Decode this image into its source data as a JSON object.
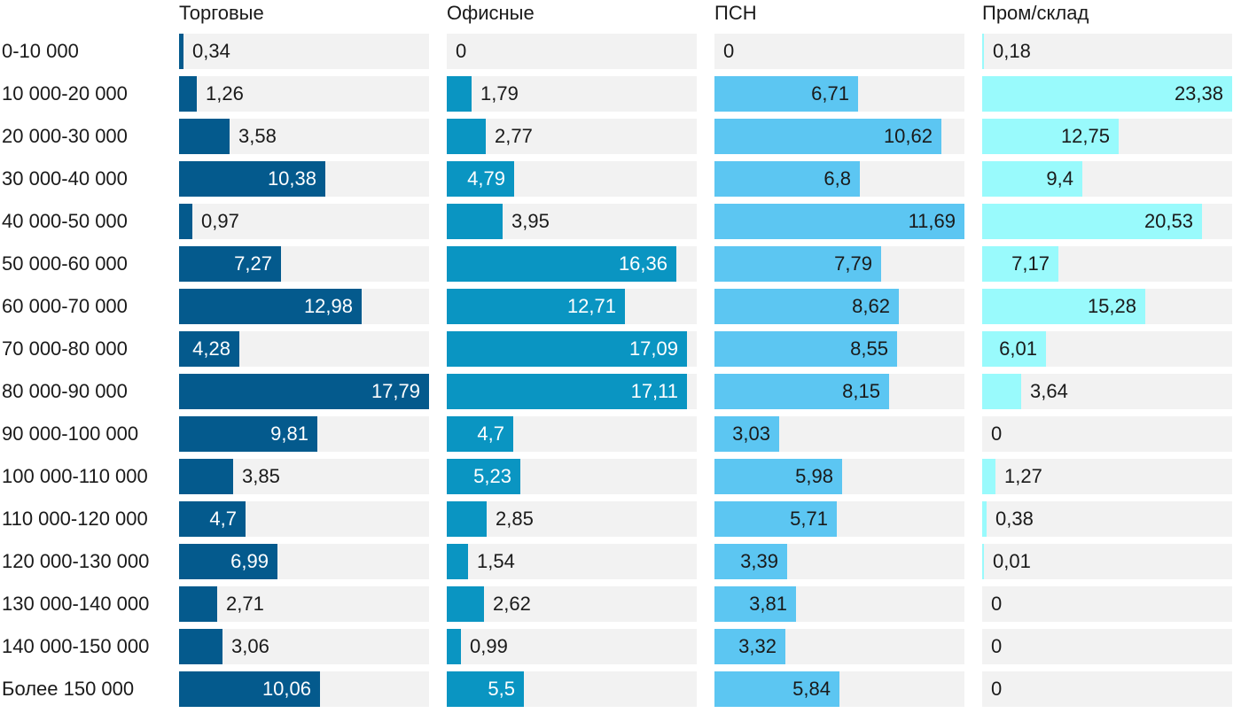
{
  "chart_data": {
    "type": "bar",
    "orientation": "horizontal",
    "layout": "small-multiples",
    "categories": [
      "0-10 000",
      "10 000-20 000",
      "20 000-30 000",
      "30 000-40 000",
      "40 000-50 000",
      "50 000-60 000",
      "60 000-70 000",
      "70 000-80 000",
      "80 000-90 000",
      "90 000-100 000",
      "100 000-110 000",
      "110 000-120 000",
      "120 000-130 000",
      "130 000-140 000",
      "140 000-150 000",
      "Более 150 000"
    ],
    "series": [
      {
        "name": "Торговые",
        "color": "#045a8d",
        "label_color": "#ffffff",
        "xlim": [
          0,
          17.79
        ],
        "values": [
          0.34,
          1.26,
          3.58,
          10.38,
          0.97,
          7.27,
          12.98,
          4.28,
          17.79,
          9.81,
          3.85,
          4.7,
          6.99,
          2.71,
          3.06,
          10.06
        ],
        "labels": [
          "0,34",
          "1,26",
          "3,58",
          "10,38",
          "0,97",
          "7,27",
          "12,98",
          "4,28",
          "17,79",
          "9,81",
          "3,85",
          "4,7",
          "6,99",
          "2,71",
          "3,06",
          "10,06"
        ]
      },
      {
        "name": "Офисные",
        "color": "#0a95c2",
        "label_color": "#ffffff",
        "xlim": [
          0,
          17.79
        ],
        "values": [
          0,
          1.79,
          2.77,
          4.79,
          3.95,
          16.36,
          12.71,
          17.09,
          17.11,
          4.7,
          5.23,
          2.85,
          1.54,
          2.62,
          0.99,
          5.5
        ],
        "labels": [
          "0",
          "1,79",
          "2,77",
          "4,79",
          "3,95",
          "16,36",
          "12,71",
          "17,09",
          "17,11",
          "4,7",
          "5,23",
          "2,85",
          "1,54",
          "2,62",
          "0,99",
          "5,5"
        ]
      },
      {
        "name": "ПСН",
        "color": "#5cc6f2",
        "label_color": "#1a1a1a",
        "xlim": [
          0,
          11.69
        ],
        "values": [
          0,
          6.71,
          10.62,
          6.8,
          11.69,
          7.79,
          8.62,
          8.55,
          8.15,
          3.03,
          5.98,
          5.71,
          3.39,
          3.81,
          3.32,
          5.84
        ],
        "labels": [
          "0",
          "6,71",
          "10,62",
          "6,8",
          "11,69",
          "7,79",
          "8,62",
          "8,55",
          "8,15",
          "3,03",
          "5,98",
          "5,71",
          "3,39",
          "3,81",
          "3,32",
          "5,84"
        ]
      },
      {
        "name": "Пром/склад",
        "color": "#99fafc",
        "label_color": "#1a1a1a",
        "xlim": [
          0,
          23.38
        ],
        "values": [
          0.18,
          23.38,
          12.75,
          9.4,
          20.53,
          7.17,
          15.28,
          6.01,
          3.64,
          0,
          1.27,
          0.38,
          0.01,
          0,
          0,
          0
        ],
        "labels": [
          "0,18",
          "23,38",
          "12,75",
          "9,4",
          "20,53",
          "7,17",
          "15,28",
          "6,01",
          "3,64",
          "0",
          "1,27",
          "0,38",
          "0,01",
          "0",
          "0",
          "0"
        ]
      }
    ],
    "title": "",
    "xlabel": "",
    "ylabel": "",
    "grid": false,
    "legend": "none"
  }
}
